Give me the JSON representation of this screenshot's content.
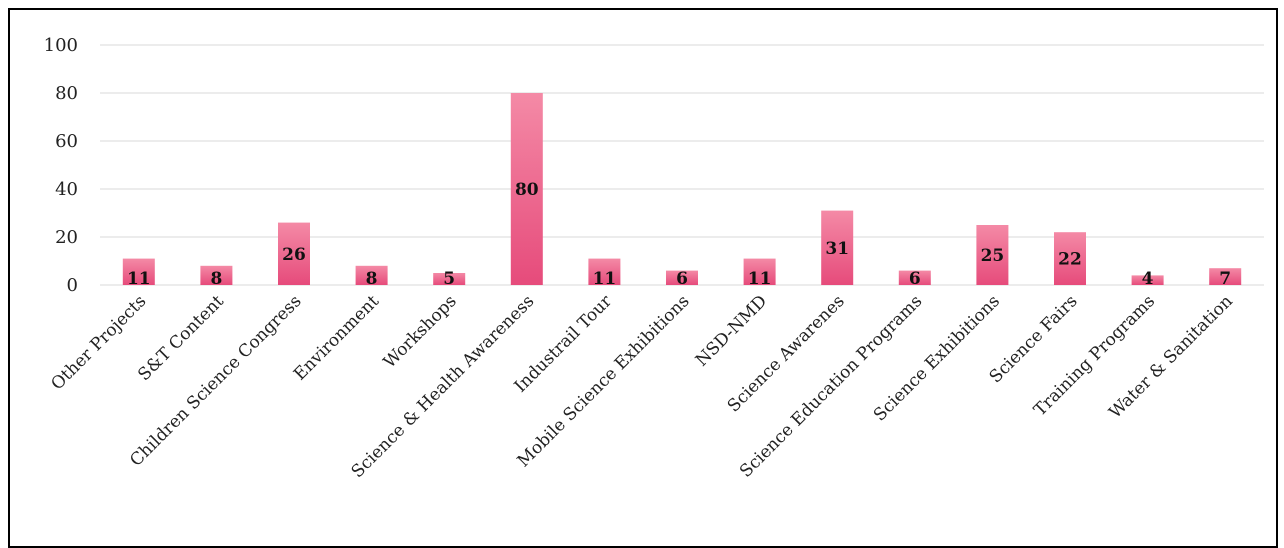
{
  "chart_data": {
    "type": "bar",
    "categories": [
      "Other Projects",
      "S&T Content",
      "Children Science Congress",
      "Environment",
      "Workshops",
      "Science & Health Awareness",
      "Industrail Tour",
      "Mobile Science Exhibitions",
      "NSD-NMD",
      "Science Awarenes",
      "Science Education Programs",
      "Science Exhibitions",
      "Science Fairs",
      "Training Programs",
      "Water & Sanitation"
    ],
    "values": [
      11,
      8,
      26,
      8,
      5,
      80,
      11,
      6,
      11,
      31,
      6,
      25,
      22,
      4,
      7
    ],
    "yticks": [
      0,
      20,
      40,
      60,
      80,
      100
    ],
    "ylim": [
      0,
      100
    ],
    "grid": true,
    "data_labels": true,
    "colors": {
      "bar_top": "#f48aa6",
      "bar_bottom": "#e64b7b",
      "grid": "#d9d9d9"
    }
  }
}
